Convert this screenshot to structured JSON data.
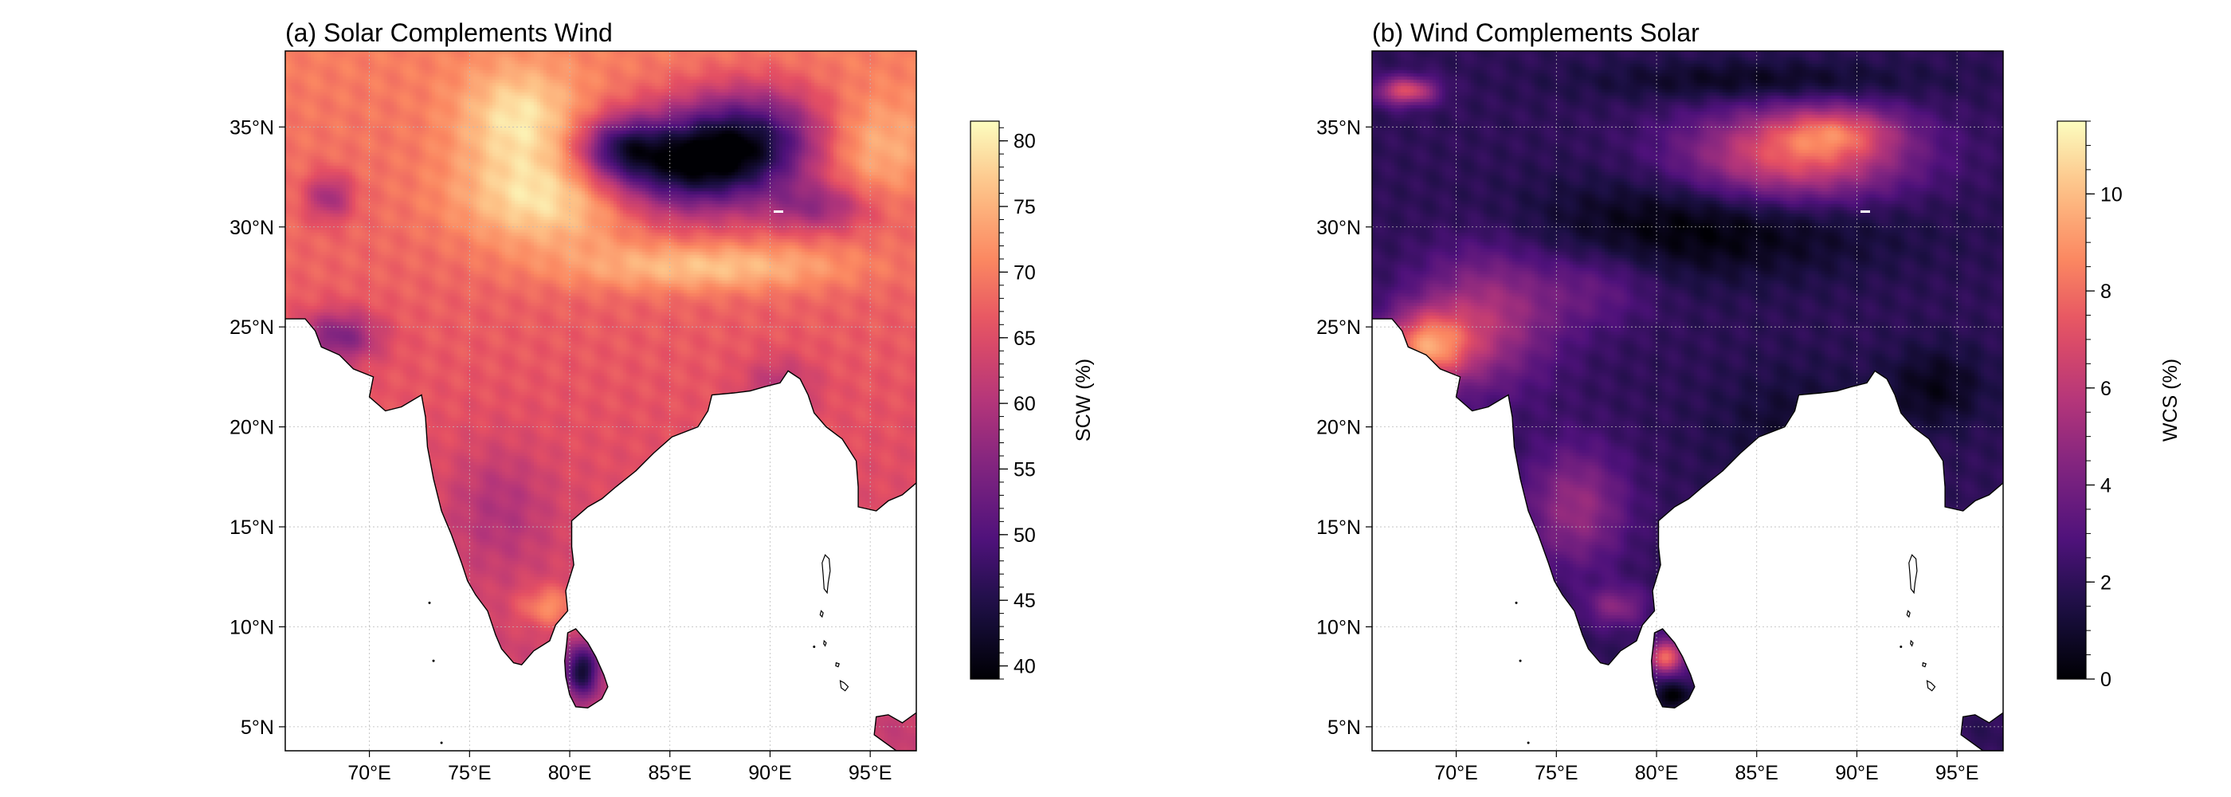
{
  "panels": [
    {
      "id": "a",
      "title": "(a) Solar Complements Wind",
      "colorbar": {
        "label": "SCW (%)",
        "min": 39,
        "max": 81.5,
        "ticks": [
          40,
          45,
          50,
          55,
          60,
          65,
          70,
          75,
          80
        ],
        "tick_labels": [
          "40",
          "45",
          "50",
          "55",
          "60",
          "65",
          "70",
          "75",
          "80"
        ],
        "minor_step": 1
      },
      "field": {
        "base_value": 66,
        "ocean_value": 69,
        "north_gradient": 4,
        "blobs": [
          {
            "lon": 85.5,
            "lat": 33.0,
            "rx": 4.5,
            "ry": 2.3,
            "value": -24
          },
          {
            "lon": 89.0,
            "lat": 34.5,
            "rx": 4.0,
            "ry": 2.5,
            "value": -20
          },
          {
            "lon": 82.5,
            "lat": 34.0,
            "rx": 2.0,
            "ry": 1.5,
            "value": -14
          },
          {
            "lon": 92.5,
            "lat": 31.0,
            "rx": 2.5,
            "ry": 1.2,
            "value": -10
          },
          {
            "lon": 79.0,
            "lat": 31.5,
            "rx": 4.5,
            "ry": 2.5,
            "value": 12
          },
          {
            "lon": 77.5,
            "lat": 35.5,
            "rx": 3.0,
            "ry": 2.5,
            "value": 10
          },
          {
            "lon": 87.0,
            "lat": 28.0,
            "rx": 7.0,
            "ry": 1.2,
            "value": 9
          },
          {
            "lon": 95.0,
            "lat": 34.0,
            "rx": 3.0,
            "ry": 2.5,
            "value": 7
          },
          {
            "lon": 68.5,
            "lat": 24.5,
            "rx": 2.0,
            "ry": 1.3,
            "value": -12
          },
          {
            "lon": 68.0,
            "lat": 31.5,
            "rx": 1.2,
            "ry": 1.2,
            "value": -10
          },
          {
            "lon": 80.6,
            "lat": 7.8,
            "rx": 0.9,
            "ry": 1.3,
            "value": -20
          },
          {
            "lon": 76.5,
            "lat": 16.0,
            "rx": 2.5,
            "ry": 3.0,
            "value": -5
          },
          {
            "lon": 79.0,
            "lat": 11.0,
            "rx": 1.5,
            "ry": 1.0,
            "value": 8
          },
          {
            "lon": 90.5,
            "lat": 22.0,
            "rx": 1.8,
            "ry": 1.5,
            "value": -6
          }
        ]
      }
    },
    {
      "id": "b",
      "title": "(b) Wind Complements Solar",
      "colorbar": {
        "label": "WCS (%)",
        "min": 0,
        "max": 11.5,
        "ticks": [
          0,
          2,
          4,
          6,
          8,
          10
        ],
        "tick_labels": [
          "0",
          "2",
          "4",
          "6",
          "8",
          "10"
        ],
        "minor_step": 0.5
      },
      "field": {
        "base_value": 2.0,
        "ocean_value": 0.5,
        "north_gradient": 0,
        "blobs": [
          {
            "lon": 87.0,
            "lat": 33.5,
            "rx": 5.5,
            "ry": 2.3,
            "value": 5.5
          },
          {
            "lon": 89.0,
            "lat": 34.8,
            "rx": 3.0,
            "ry": 1.2,
            "value": 3.0
          },
          {
            "lon": 82.5,
            "lat": 30.0,
            "rx": 9.0,
            "ry": 2.5,
            "value": -2.0
          },
          {
            "lon": 85.0,
            "lat": 37.3,
            "rx": 8.0,
            "ry": 1.0,
            "value": -1.5
          },
          {
            "lon": 67.5,
            "lat": 36.8,
            "rx": 1.5,
            "ry": 0.7,
            "value": 5.0
          },
          {
            "lon": 68.5,
            "lat": 24.0,
            "rx": 2.2,
            "ry": 1.8,
            "value": 6.0
          },
          {
            "lon": 71.5,
            "lat": 25.5,
            "rx": 3.5,
            "ry": 3.5,
            "value": 3.5
          },
          {
            "lon": 76.0,
            "lat": 16.0,
            "rx": 2.5,
            "ry": 3.0,
            "value": 3.0
          },
          {
            "lon": 78.0,
            "lat": 11.0,
            "rx": 1.5,
            "ry": 1.0,
            "value": 2.5
          },
          {
            "lon": 80.5,
            "lat": 8.5,
            "rx": 0.9,
            "ry": 0.8,
            "value": 6.0
          },
          {
            "lon": 80.8,
            "lat": 6.5,
            "rx": 0.9,
            "ry": 0.6,
            "value": -2.0
          },
          {
            "lon": 87.0,
            "lat": 20.0,
            "rx": 4.0,
            "ry": 3.0,
            "value": -1.0
          },
          {
            "lon": 94.0,
            "lat": 22.0,
            "rx": 2.5,
            "ry": 2.0,
            "value": -1.5
          },
          {
            "lon": 77.0,
            "lat": 27.0,
            "rx": 3.0,
            "ry": 2.0,
            "value": 1.5
          }
        ]
      }
    }
  ],
  "map": {
    "lon_min": 65.8,
    "lon_max": 97.3,
    "lat_min": 3.8,
    "lat_max": 38.8,
    "lon_ticks": [
      70,
      75,
      80,
      85,
      90,
      95
    ],
    "lon_tick_labels": [
      "70°E",
      "75°E",
      "80°E",
      "85°E",
      "90°E",
      "95°E"
    ],
    "lat_ticks": [
      5,
      10,
      15,
      20,
      25,
      30,
      35
    ],
    "lat_tick_labels": [
      "5°N",
      "10°N",
      "15°N",
      "20°N",
      "25°N",
      "30°N",
      "35°N"
    ],
    "coastline_mainland": [
      [
        65.8,
        25.4
      ],
      [
        66.8,
        25.4
      ],
      [
        67.3,
        24.8
      ],
      [
        67.6,
        24.0
      ],
      [
        68.5,
        23.6
      ],
      [
        69.2,
        22.9
      ],
      [
        70.2,
        22.5
      ],
      [
        70.0,
        21.5
      ],
      [
        70.8,
        20.8
      ],
      [
        71.6,
        21.0
      ],
      [
        72.6,
        21.6
      ],
      [
        72.8,
        20.5
      ],
      [
        72.9,
        19.0
      ],
      [
        73.2,
        17.4
      ],
      [
        73.6,
        15.8
      ],
      [
        74.1,
        14.6
      ],
      [
        74.6,
        13.2
      ],
      [
        74.9,
        12.3
      ],
      [
        75.3,
        11.6
      ],
      [
        75.9,
        10.8
      ],
      [
        76.3,
        9.6
      ],
      [
        76.6,
        8.9
      ],
      [
        77.2,
        8.2
      ],
      [
        77.6,
        8.1
      ],
      [
        78.2,
        8.8
      ],
      [
        79.0,
        9.3
      ],
      [
        79.3,
        10.1
      ],
      [
        79.9,
        10.8
      ],
      [
        79.8,
        11.8
      ],
      [
        80.2,
        13.1
      ],
      [
        80.1,
        14.0
      ],
      [
        80.1,
        15.3
      ],
      [
        80.9,
        16.0
      ],
      [
        81.6,
        16.4
      ],
      [
        82.3,
        17.0
      ],
      [
        83.3,
        17.8
      ],
      [
        84.2,
        18.7
      ],
      [
        85.1,
        19.5
      ],
      [
        86.4,
        20.0
      ],
      [
        86.9,
        20.8
      ],
      [
        87.1,
        21.6
      ],
      [
        88.2,
        21.7
      ],
      [
        89.0,
        21.8
      ],
      [
        89.7,
        22.0
      ],
      [
        90.5,
        22.2
      ],
      [
        90.9,
        22.8
      ],
      [
        91.5,
        22.4
      ],
      [
        91.9,
        21.6
      ],
      [
        92.2,
        20.7
      ],
      [
        92.8,
        20.0
      ],
      [
        93.6,
        19.4
      ],
      [
        94.3,
        18.3
      ],
      [
        94.4,
        17.0
      ],
      [
        94.4,
        16.0
      ],
      [
        95.3,
        15.8
      ],
      [
        95.9,
        16.3
      ],
      [
        96.6,
        16.6
      ],
      [
        97.3,
        17.2
      ],
      [
        97.3,
        38.8
      ],
      [
        65.8,
        38.8
      ]
    ],
    "coastline_srilanka": [
      [
        79.9,
        9.7
      ],
      [
        80.3,
        9.9
      ],
      [
        80.9,
        9.2
      ],
      [
        81.3,
        8.5
      ],
      [
        81.7,
        7.6
      ],
      [
        81.9,
        7.0
      ],
      [
        81.6,
        6.4
      ],
      [
        80.9,
        5.95
      ],
      [
        80.3,
        6.0
      ],
      [
        80.0,
        6.6
      ],
      [
        79.8,
        7.5
      ],
      [
        79.75,
        8.3
      ],
      [
        79.85,
        9.2
      ]
    ],
    "coastline_malay": [
      [
        97.3,
        5.7
      ],
      [
        96.6,
        5.2
      ],
      [
        95.9,
        5.6
      ],
      [
        95.3,
        5.5
      ],
      [
        95.2,
        4.6
      ],
      [
        96.3,
        3.8
      ],
      [
        97.3,
        3.8
      ]
    ],
    "islands": [
      [
        [
          92.75,
          13.6
        ],
        [
          92.95,
          13.4
        ],
        [
          93.0,
          12.8
        ],
        [
          92.9,
          12.2
        ],
        [
          92.85,
          11.7
        ],
        [
          92.7,
          11.9
        ],
        [
          92.65,
          12.6
        ],
        [
          92.6,
          13.2
        ]
      ],
      [
        [
          92.55,
          10.8
        ],
        [
          92.65,
          10.7
        ],
        [
          92.6,
          10.5
        ],
        [
          92.5,
          10.6
        ]
      ],
      [
        [
          92.7,
          9.3
        ],
        [
          92.8,
          9.2
        ],
        [
          92.75,
          9.05
        ],
        [
          92.68,
          9.15
        ]
      ],
      [
        [
          93.5,
          7.3
        ],
        [
          93.7,
          7.2
        ],
        [
          93.9,
          7.0
        ],
        [
          93.75,
          6.8
        ],
        [
          93.55,
          6.95
        ]
      ],
      [
        [
          93.3,
          8.2
        ],
        [
          93.45,
          8.15
        ],
        [
          93.4,
          8.0
        ],
        [
          93.28,
          8.05
        ]
      ]
    ],
    "dots": [
      [
        73.0,
        11.2
      ],
      [
        73.2,
        8.3
      ],
      [
        73.6,
        4.2
      ],
      [
        92.2,
        9.0
      ]
    ]
  }
}
